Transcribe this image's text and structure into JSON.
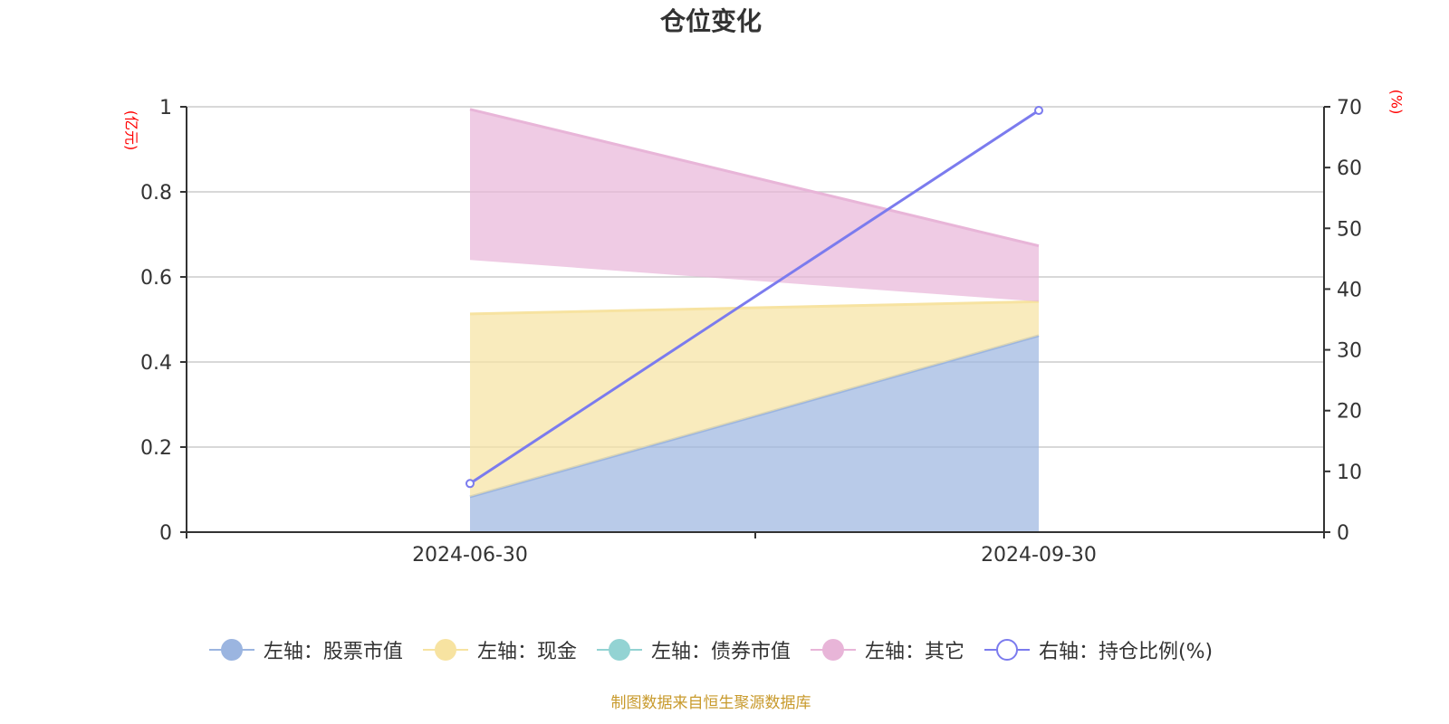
{
  "title": "仓位变化",
  "footer": "制图数据来自恒生聚源数据库",
  "axes": {
    "left_unit": "(亿元)",
    "right_unit": "(%)",
    "left_ticks": [
      "0",
      "0.2",
      "0.4",
      "0.6",
      "0.8",
      "1"
    ],
    "right_ticks": [
      "0",
      "10",
      "20",
      "30",
      "40",
      "50",
      "60",
      "70"
    ],
    "x_ticks": [
      "2024-06-30",
      "2024-09-30"
    ]
  },
  "legend": [
    {
      "label": "左轴：股票市值",
      "color": "#9bb5e0",
      "marker": "filled-circle"
    },
    {
      "label": "左轴：现金",
      "color": "#f7e3a1",
      "marker": "filled-circle"
    },
    {
      "label": "左轴：债券市值",
      "color": "#93d3d3",
      "marker": "filled-circle"
    },
    {
      "label": "左轴：其它",
      "color": "#e8b5d8",
      "marker": "filled-circle"
    },
    {
      "label": "右轴：持仓比例(%)",
      "color": "#7b7bee",
      "marker": "hollow-circle"
    }
  ],
  "chart_data": {
    "type": "area",
    "title": "仓位变化",
    "categories": [
      "2024-06-30",
      "2024-09-30"
    ],
    "xlabel": "",
    "ylabel": "(亿元)",
    "ylabel_right": "(%)",
    "ylim": [
      0,
      1
    ],
    "ylim_right": [
      0,
      70
    ],
    "grid": true,
    "legend_position": "bottom",
    "stacked": true,
    "series": [
      {
        "name": "左轴：股票市值",
        "axis": "left",
        "type": "area",
        "color": "#9bb5e0",
        "values": [
          0.083,
          0.462
        ]
      },
      {
        "name": "左轴：现金",
        "axis": "left",
        "type": "area",
        "color": "#f7e3a1",
        "values": [
          0.43,
          0.08
        ]
      },
      {
        "name": "左轴：债券市值",
        "axis": "left",
        "type": "area",
        "color": "#93d3d3",
        "values": [
          0.127,
          0.0
        ]
      },
      {
        "name": "左轴：其它",
        "axis": "left",
        "type": "area",
        "color": "#e8b5d8",
        "values": [
          0.354,
          0.131
        ]
      },
      {
        "name": "右轴：持仓比例(%)",
        "axis": "right",
        "type": "line",
        "color": "#7b7bee",
        "values": [
          8.0,
          69.4
        ]
      }
    ]
  }
}
